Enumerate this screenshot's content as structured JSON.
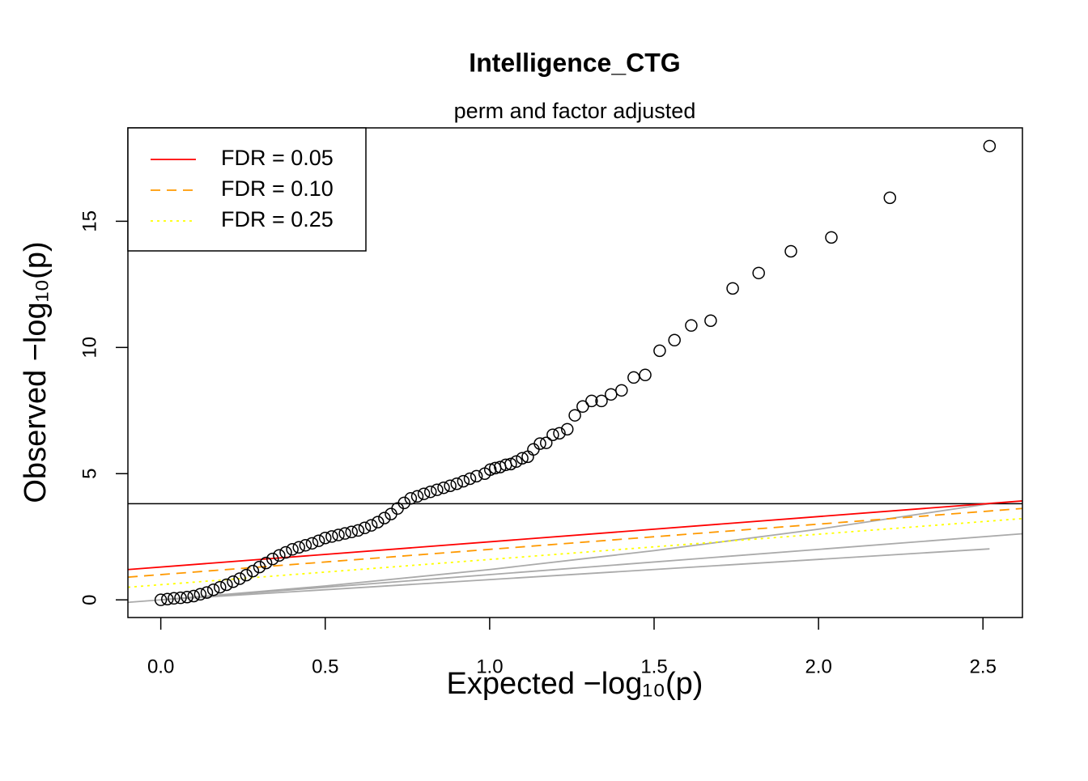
{
  "chart_data": {
    "type": "scatter",
    "title": "Intelligence_CTG",
    "subtitle": "perm and factor adjusted",
    "x_label": "Expected  −log₁₀(p)",
    "y_label": "Observed  −log₁₀(p)",
    "xlim": [
      -0.1,
      2.62
    ],
    "ylim": [
      -0.7,
      18.7
    ],
    "xticks": [
      {
        "value": 0,
        "label": "0.0"
      },
      0.5,
      {
        "value": 1,
        "label": "1.0"
      },
      1.5,
      {
        "value": 2,
        "label": "2.0"
      },
      2.5
    ],
    "yticks": [
      0,
      5,
      10,
      15
    ],
    "legend": "topleft",
    "point_color": "#000000",
    "x": [
      0.0,
      0.02,
      0.04,
      0.06,
      0.08,
      0.1,
      0.12,
      0.14,
      0.16,
      0.18,
      0.2,
      0.22,
      0.24,
      0.26,
      0.28,
      0.3,
      0.32,
      0.34,
      0.36,
      0.38,
      0.4,
      0.42,
      0.44,
      0.46,
      0.48,
      0.5,
      0.52,
      0.54,
      0.56,
      0.58,
      0.6,
      0.62,
      0.64,
      0.66,
      0.68,
      0.7,
      0.72,
      0.74,
      0.76,
      0.78,
      0.8,
      0.82,
      0.84,
      0.86,
      0.88,
      0.9,
      0.92,
      0.94,
      0.96,
      0.985,
      1.002,
      1.017,
      1.032,
      1.049,
      1.064,
      1.081,
      1.099,
      1.116,
      1.133,
      1.153,
      1.172,
      1.192,
      1.212,
      1.236,
      1.259,
      1.283,
      1.31,
      1.34,
      1.369,
      1.401,
      1.438,
      1.473,
      1.517,
      1.562,
      1.613,
      1.672,
      1.739,
      1.818,
      1.916,
      2.039,
      2.217,
      2.52
    ],
    "y": [
      0.0,
      0.03,
      0.06,
      0.08,
      0.11,
      0.15,
      0.22,
      0.29,
      0.4,
      0.5,
      0.6,
      0.72,
      0.84,
      0.98,
      1.14,
      1.3,
      1.46,
      1.62,
      1.76,
      1.88,
      2.0,
      2.08,
      2.16,
      2.24,
      2.34,
      2.45,
      2.51,
      2.57,
      2.63,
      2.69,
      2.75,
      2.85,
      2.95,
      3.08,
      3.24,
      3.4,
      3.62,
      3.84,
      4.02,
      4.1,
      4.2,
      4.28,
      4.36,
      4.44,
      4.52,
      4.6,
      4.7,
      4.8,
      4.9,
      5.0,
      5.16,
      5.22,
      5.26,
      5.35,
      5.38,
      5.48,
      5.61,
      5.67,
      5.96,
      6.19,
      6.22,
      6.54,
      6.6,
      6.76,
      7.31,
      7.66,
      7.88,
      7.88,
      8.14,
      8.3,
      8.81,
      8.91,
      9.87,
      10.29,
      10.87,
      11.06,
      12.34,
      12.95,
      13.81,
      14.36,
      15.93,
      17.98
    ],
    "series": [
      {
        "name": "FDR = 0.05",
        "color": "#ff0000",
        "dash": "solid",
        "x": [
          -0.1,
          2.62
        ],
        "y": [
          1.2,
          3.92
        ]
      },
      {
        "name": "FDR = 0.10",
        "color": "#ff9900",
        "dash": "dashed",
        "x": [
          -0.1,
          2.62
        ],
        "y": [
          0.9,
          3.62
        ]
      },
      {
        "name": "FDR = 0.25",
        "color": "#ffff00",
        "dash": "dotted",
        "x": [
          -0.1,
          2.62
        ],
        "y": [
          0.5,
          3.22
        ]
      }
    ],
    "reference_lines": [
      {
        "color": "#aaaaaa",
        "x": [
          -0.1,
          2.62
        ],
        "y": [
          -0.1,
          2.62
        ]
      },
      {
        "color": "#aaaaaa",
        "x": [
          0,
          0.5,
          1.0,
          1.5,
          2.0,
          2.52
        ],
        "y": [
          0,
          0.55,
          1.2,
          1.95,
          2.8,
          3.81
        ]
      },
      {
        "color": "#aaaaaa",
        "x": [
          0,
          2.52
        ],
        "y": [
          0,
          2.02
        ]
      }
    ],
    "hline": 3.81,
    "hline_color": "#000000"
  }
}
